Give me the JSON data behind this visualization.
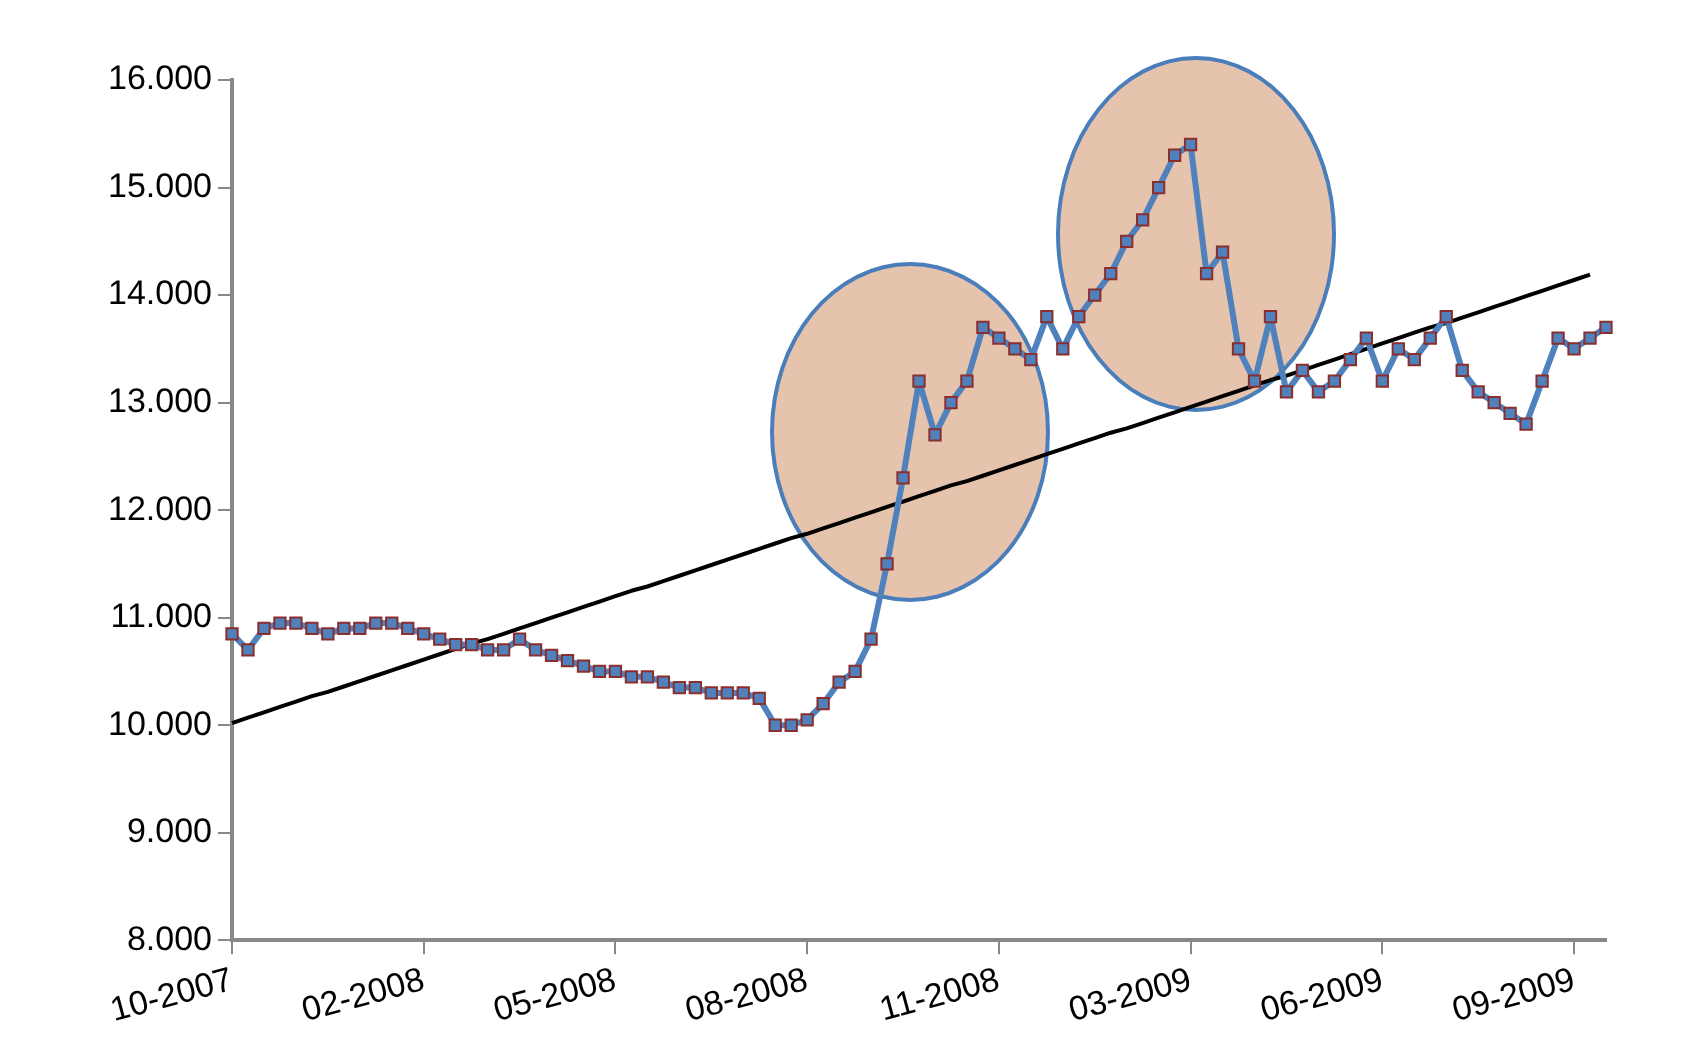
{
  "chart_data": {
    "type": "line",
    "categories": [
      "10-2007",
      null,
      null,
      null,
      null,
      null,
      null,
      null,
      null,
      null,
      null,
      null,
      "02-2008",
      null,
      null,
      null,
      null,
      null,
      null,
      null,
      null,
      null,
      null,
      null,
      "05-2008",
      null,
      null,
      null,
      null,
      null,
      null,
      null,
      null,
      null,
      null,
      null,
      "08-2008",
      null,
      null,
      null,
      null,
      null,
      null,
      null,
      null,
      null,
      null,
      null,
      "11-2008",
      null,
      null,
      null,
      null,
      null,
      null,
      null,
      null,
      null,
      null,
      null,
      "03-2009",
      null,
      null,
      null,
      null,
      null,
      null,
      null,
      null,
      null,
      null,
      null,
      "06-2009",
      null,
      null,
      null,
      null,
      null,
      null,
      null,
      null,
      null,
      null,
      null,
      "09-2009",
      null,
      null
    ],
    "ylim": [
      8,
      16
    ],
    "yticks": [
      {
        "value": 8,
        "label": "8.000"
      },
      {
        "value": 9,
        "label": "9.000"
      },
      {
        "value": 10,
        "label": "10.000"
      },
      {
        "value": 11,
        "label": "11.000"
      },
      {
        "value": 12,
        "label": "12.000"
      },
      {
        "value": 13,
        "label": "13.000"
      },
      {
        "value": 14,
        "label": "14.000"
      },
      {
        "value": 15,
        "label": "15.000"
      },
      {
        "value": 16,
        "label": "16.000"
      }
    ],
    "grid": false,
    "legend": false,
    "marker": "square",
    "line_style": "solid",
    "series": [
      {
        "color": "#4f81bd",
        "values": [
          10.85,
          10.7,
          10.9,
          10.95,
          10.95,
          10.9,
          10.85,
          10.9,
          10.9,
          10.95,
          10.95,
          10.9,
          10.85,
          10.8,
          10.75,
          10.75,
          10.7,
          10.7,
          10.8,
          10.7,
          10.65,
          10.6,
          10.55,
          10.5,
          10.5,
          10.45,
          10.45,
          10.4,
          10.35,
          10.35,
          10.3,
          10.3,
          10.3,
          10.25,
          10.0,
          10.0,
          10.05,
          10.2,
          10.4,
          10.5,
          10.8,
          11.5,
          12.3,
          13.2,
          12.7,
          13.0,
          13.2,
          13.7,
          13.6,
          13.5,
          13.4,
          13.8,
          13.5,
          13.8,
          14.0,
          14.2,
          14.5,
          14.7,
          15.0,
          15.3,
          15.4,
          14.2,
          14.4,
          13.5,
          13.2,
          13.8,
          13.1,
          13.3,
          13.1,
          13.2,
          13.4,
          13.6,
          13.2,
          13.5,
          13.4,
          13.6,
          13.8,
          13.3,
          13.1,
          13.0,
          12.9,
          12.8,
          13.2,
          13.6,
          13.5,
          13.6,
          13.7
        ]
      },
      {
        "marker": "none",
        "color": "#000000",
        "values": [
          10.02,
          10.07,
          10.12,
          10.17,
          10.22,
          10.27,
          10.31,
          10.36,
          10.41,
          10.46,
          10.51,
          10.56,
          10.61,
          10.66,
          10.71,
          10.76,
          10.8,
          10.85,
          10.9,
          10.95,
          11.0,
          11.05,
          11.1,
          11.15,
          11.2,
          11.25,
          11.29,
          11.34,
          11.39,
          11.44,
          11.49,
          11.54,
          11.59,
          11.64,
          11.69,
          11.74,
          11.78,
          11.83,
          11.88,
          11.93,
          11.98,
          12.03,
          12.08,
          12.13,
          12.18,
          12.23,
          12.27,
          12.32,
          12.37,
          12.42,
          12.47,
          12.52,
          12.57,
          12.62,
          12.67,
          12.72,
          12.76,
          12.81,
          12.86,
          12.91,
          12.96,
          13.01,
          13.06,
          13.11,
          13.16,
          13.21,
          13.25,
          13.3,
          13.35,
          13.4,
          13.45,
          13.5,
          13.55,
          13.6,
          13.65,
          13.7,
          13.74,
          13.79,
          13.84,
          13.89,
          13.94,
          13.99,
          14.04,
          14.09,
          14.14,
          14.19,
          null
        ]
      }
    ]
  }
}
